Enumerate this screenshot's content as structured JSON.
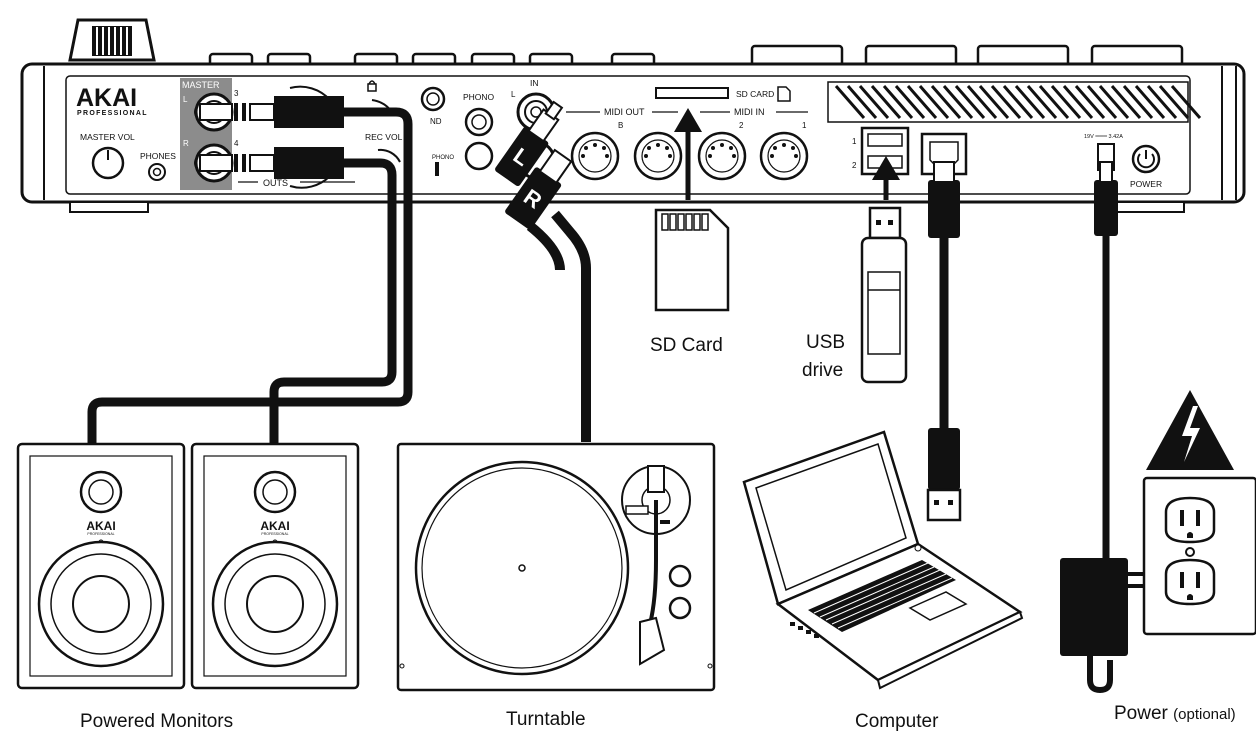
{
  "device": {
    "brand": "AKAI",
    "brand_sub": "PROFESSIONAL",
    "master_label": "MASTER",
    "l_label": "L",
    "r_label": "R",
    "out3_label": "3",
    "out4_label": "4",
    "master_vol_label": "MASTER VOL",
    "phones_label": "PHONES",
    "outs_label": "OUTS",
    "rec_vol_label": "REC VOL",
    "gnd_label": "ND",
    "phono_label": "PHONO",
    "phono_switch_label": "PHONO",
    "in_label": "IN",
    "in_l_label": "L",
    "sd_card_label": "SD CARD",
    "midi_out_label": "MIDI OUT",
    "midi_out_b": "B",
    "midi_in_label": "MIDI IN",
    "midi_in_2": "2",
    "midi_in_1": "1",
    "usb_1": "1",
    "usb_2": "2",
    "power_spec": "19V ═══ 3.42A",
    "power_label": "POWER"
  },
  "captions": {
    "sd_card": "SD Card",
    "usb_drive_line1": "USB",
    "usb_drive_line2": "drive",
    "powered_monitors": "Powered Monitors",
    "turntable": "Turntable",
    "computer": "Computer",
    "power": "Power",
    "power_note": "(optional)"
  },
  "monitors": {
    "brand": "AKAI",
    "brand_sub": "PROFESSIONAL"
  },
  "rca_plugs": {
    "left": "L",
    "right": "R"
  },
  "colors": {
    "ink": "#111111",
    "panel_gray": "#8c8c8c",
    "background": "#ffffff"
  }
}
